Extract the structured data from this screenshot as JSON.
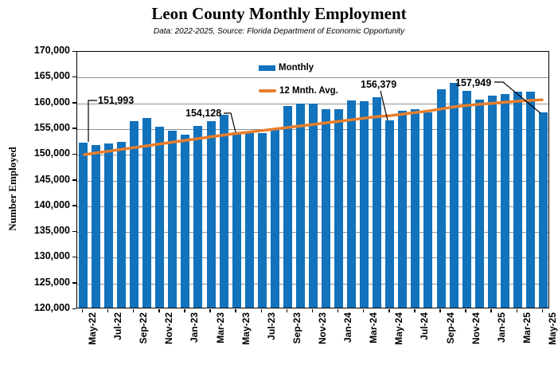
{
  "title": "Leon County Monthly Employment",
  "subtitle": "Data: 2022-2025, Source: Florida Department of Economic Opportunity",
  "y_axis_title": "Number Employed",
  "legend": {
    "monthly_label": "Monthly",
    "avg_label": "12 Mnth. Avg."
  },
  "colors": {
    "bar": "#1272BC",
    "avg_line": "#E87E2C",
    "gridline": "#8C9196",
    "frame": "#000000"
  },
  "chart_data": {
    "type": "bar",
    "title": "Leon County Monthly Employment",
    "subtitle": "Data: 2022-2025, Source: Florida Department of Economic Opportunity",
    "xlabel": "",
    "ylabel": "Number Employed",
    "ylim": [
      120000,
      170000
    ],
    "ytick_step": 5000,
    "grid": true,
    "legend_position": "top-center-inside",
    "y_tick_labels": [
      "120,000",
      "125,000",
      "130,000",
      "135,000",
      "140,000",
      "145,000",
      "150,000",
      "155,000",
      "160,000",
      "165,000",
      "170,000"
    ],
    "x_tick_labels": [
      "May-22",
      "Jul-22",
      "Sep-22",
      "Nov-22",
      "Jan-23",
      "Mar-23",
      "May-23",
      "Jul-23",
      "Sep-23",
      "Nov-23",
      "Jan-24",
      "Mar-24",
      "May-24",
      "Jul-24",
      "Sep-24",
      "Nov-24",
      "Jan-25",
      "Mar-25",
      "May-25"
    ],
    "categories": [
      "May-22",
      "Jun-22",
      "Jul-22",
      "Aug-22",
      "Sep-22",
      "Oct-22",
      "Nov-22",
      "Dec-22",
      "Jan-23",
      "Feb-23",
      "Mar-23",
      "Apr-23",
      "May-23",
      "Jun-23",
      "Jul-23",
      "Aug-23",
      "Sep-23",
      "Oct-23",
      "Nov-23",
      "Dec-23",
      "Jan-24",
      "Feb-24",
      "Mar-24",
      "Apr-24",
      "May-24",
      "Jun-24",
      "Jul-24",
      "Aug-24",
      "Sep-24",
      "Oct-24",
      "Nov-24",
      "Dec-24",
      "Jan-25",
      "Feb-25",
      "Mar-25",
      "Apr-25",
      "May-25"
    ],
    "series": [
      {
        "name": "Monthly",
        "type": "bar",
        "values": [
          151993,
          151600,
          151900,
          152200,
          156300,
          156900,
          155100,
          154400,
          153600,
          155300,
          156300,
          157400,
          154128,
          154000,
          153900,
          154700,
          159200,
          159700,
          159700,
          158500,
          158500,
          160300,
          160100,
          160800,
          156379,
          158300,
          158500,
          157900,
          162400,
          163600,
          162100,
          160400,
          161200,
          161500,
          162000,
          161900,
          157949
        ]
      },
      {
        "name": "12 Mnth. Avg.",
        "type": "line",
        "values": [
          150000,
          150350,
          150700,
          151050,
          151400,
          151750,
          152100,
          152450,
          152800,
          153150,
          153500,
          153820,
          154128,
          154400,
          154700,
          155000,
          155300,
          155600,
          155900,
          156200,
          156500,
          156800,
          157100,
          157400,
          157600,
          157900,
          158200,
          158500,
          158900,
          159300,
          159600,
          159800,
          160000,
          160200,
          160400,
          160550,
          160700
        ]
      }
    ],
    "annotations": [
      {
        "label": "151,993",
        "month": "May-22",
        "value": 151993
      },
      {
        "label": "154,128",
        "month": "May-23",
        "value": 154128
      },
      {
        "label": "156,379",
        "month": "May-24",
        "value": 156379
      },
      {
        "label": "157,949",
        "month": "May-25",
        "value": 157949
      }
    ]
  }
}
